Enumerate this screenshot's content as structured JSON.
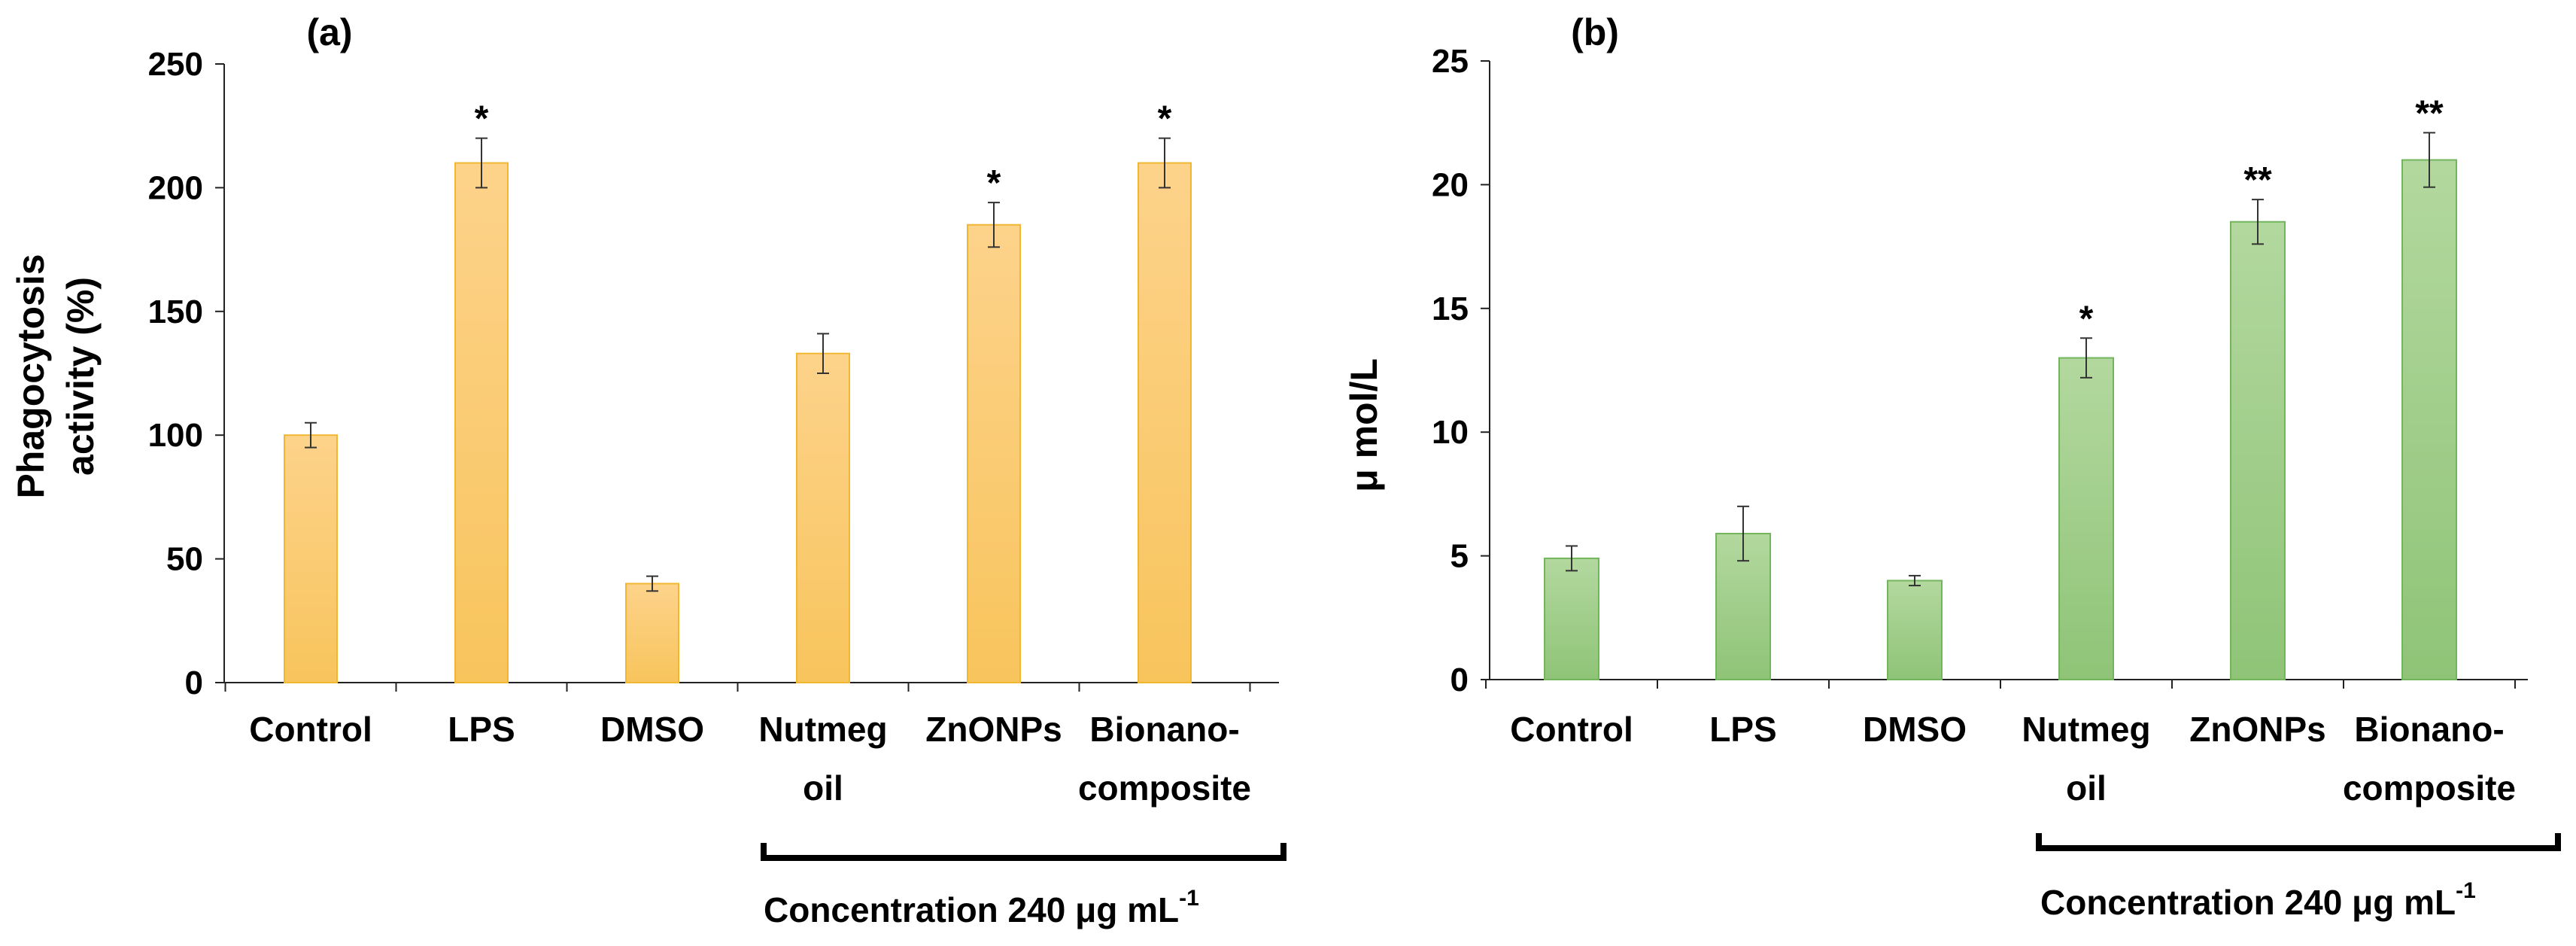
{
  "chart_data": [
    {
      "type": "bar",
      "panel_label": "(a)",
      "title": "",
      "xlabel": "",
      "ylabel_lines": [
        "Phagocytosis",
        "activity (%)"
      ],
      "ylim": [
        0,
        250
      ],
      "yticks": [
        0,
        50,
        100,
        150,
        200,
        250
      ],
      "categories": [
        [
          "Control"
        ],
        [
          "LPS"
        ],
        [
          "DMSO"
        ],
        [
          "Nutmeg",
          "oil"
        ],
        [
          "ZnONPs"
        ],
        [
          "Bionano-",
          "composite"
        ]
      ],
      "values": [
        100,
        210,
        40,
        133,
        185,
        210
      ],
      "errors": [
        5,
        10,
        3,
        8,
        9,
        10
      ],
      "significance": [
        "",
        "*",
        "",
        "",
        "*",
        "*"
      ],
      "bar_color": "#fdd38b",
      "bar_color_dark": "#f8c45c",
      "bar_edge": "#f1b733",
      "bracket_label": "Concentration 240 μg mL",
      "bracket_sup": "-1",
      "grid": false
    },
    {
      "type": "bar",
      "panel_label": "(b)",
      "title": "",
      "xlabel": "",
      "ylabel_lines": [
        "μ mol/L"
      ],
      "ylim": [
        0,
        25
      ],
      "yticks": [
        0,
        5,
        10,
        15,
        20,
        25
      ],
      "categories": [
        [
          "Control"
        ],
        [
          "LPS"
        ],
        [
          "DMSO"
        ],
        [
          "Nutmeg",
          "oil"
        ],
        [
          "ZnONPs"
        ],
        [
          "Bionano-",
          "composite"
        ]
      ],
      "values": [
        4.9,
        5.9,
        4.0,
        13.0,
        18.5,
        21.0
      ],
      "errors": [
        0.5,
        1.1,
        0.2,
        0.8,
        0.9,
        1.1
      ],
      "significance": [
        "",
        "",
        "",
        "*",
        "**",
        "**"
      ],
      "bar_color": "#b3d89f",
      "bar_color_dark": "#8fc477",
      "bar_edge": "#73b55d",
      "bracket_label": "Concentration 240 μg mL",
      "bracket_sup": "-1",
      "grid": false
    }
  ]
}
